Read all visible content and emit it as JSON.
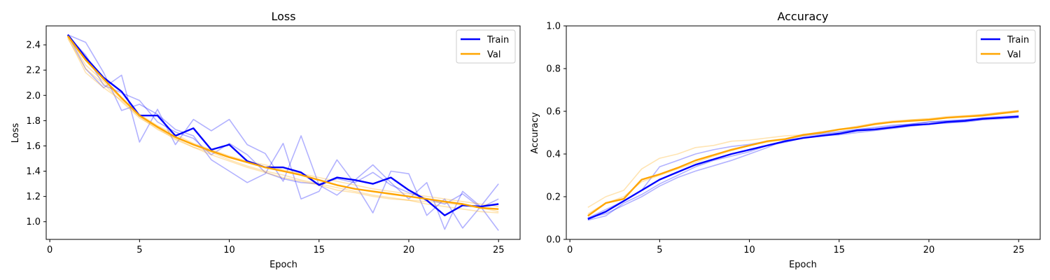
{
  "chart_data": [
    {
      "type": "line",
      "title": "Loss",
      "xlabel": "Epoch",
      "ylabel": "Loss",
      "xlim": [
        -0.2,
        26.2
      ],
      "ylim": [
        0.86,
        2.55
      ],
      "xticks": [
        0,
        5,
        10,
        15,
        20,
        25
      ],
      "xtick_labels": [
        "0",
        "5",
        "10",
        "15",
        "20",
        "25"
      ],
      "yticks": [
        1.0,
        1.2,
        1.4,
        1.6,
        1.8,
        2.0,
        2.2,
        2.4
      ],
      "ytick_labels": [
        "1.0",
        "1.2",
        "1.4",
        "1.6",
        "1.8",
        "2.0",
        "2.2",
        "2.4"
      ],
      "grid": false,
      "legend_position": "top-right",
      "x": [
        1,
        2,
        3,
        4,
        5,
        6,
        7,
        8,
        9,
        10,
        11,
        12,
        13,
        14,
        15,
        16,
        17,
        18,
        19,
        20,
        21,
        22,
        23,
        24,
        25
      ],
      "series": [
        {
          "name": "Train",
          "color": "#0000ff",
          "opacity": 1.0,
          "width": 2.4,
          "values": [
            2.48,
            2.3,
            2.14,
            2.03,
            1.84,
            1.84,
            1.68,
            1.74,
            1.57,
            1.61,
            1.48,
            1.43,
            1.43,
            1.39,
            1.29,
            1.35,
            1.33,
            1.3,
            1.35,
            1.25,
            1.17,
            1.05,
            1.13,
            1.12,
            1.14
          ]
        },
        {
          "name": "Val",
          "color": "#ffa500",
          "opacity": 1.0,
          "width": 2.4,
          "values": [
            2.47,
            2.28,
            2.13,
            1.98,
            1.84,
            1.75,
            1.67,
            1.61,
            1.56,
            1.51,
            1.47,
            1.43,
            1.4,
            1.37,
            1.33,
            1.29,
            1.26,
            1.24,
            1.22,
            1.2,
            1.18,
            1.16,
            1.14,
            1.11,
            1.1
          ]
        }
      ],
      "background_series": [
        {
          "color": "#0000ff",
          "opacity": 0.3,
          "values": [
            2.48,
            2.21,
            2.06,
            2.16,
            1.63,
            1.89,
            1.61,
            1.81,
            1.72,
            1.81,
            1.61,
            1.54,
            1.32,
            1.68,
            1.29,
            1.21,
            1.33,
            1.45,
            1.31,
            1.18,
            1.31,
            0.94,
            1.24,
            1.12,
            1.3
          ]
        },
        {
          "color": "#0000ff",
          "opacity": 0.3,
          "values": [
            2.48,
            2.42,
            2.18,
            1.88,
            1.93,
            1.85,
            1.73,
            1.68,
            1.49,
            1.4,
            1.31,
            1.38,
            1.62,
            1.18,
            1.24,
            1.49,
            1.3,
            1.07,
            1.4,
            1.38,
            1.05,
            1.18,
            0.95,
            1.12,
            0.93
          ]
        },
        {
          "color": "#0000ff",
          "opacity": 0.3,
          "values": [
            2.47,
            2.32,
            2.08,
            2.02,
            1.96,
            1.79,
            1.71,
            1.66,
            1.53,
            1.62,
            1.53,
            1.39,
            1.34,
            1.31,
            1.3,
            1.34,
            1.31,
            1.39,
            1.29,
            1.23,
            1.18,
            1.14,
            1.22,
            1.11,
            1.18
          ]
        },
        {
          "color": "#ffa500",
          "opacity": 0.3,
          "values": [
            2.46,
            2.18,
            2.06,
            1.96,
            1.83,
            1.73,
            1.66,
            1.59,
            1.55,
            1.49,
            1.44,
            1.4,
            1.37,
            1.33,
            1.3,
            1.27,
            1.24,
            1.21,
            1.19,
            1.17,
            1.16,
            1.15,
            1.13,
            1.11,
            1.08
          ]
        },
        {
          "color": "#ffa500",
          "opacity": 0.3,
          "values": [
            2.47,
            2.24,
            2.11,
            1.97,
            1.85,
            1.76,
            1.69,
            1.62,
            1.57,
            1.52,
            1.48,
            1.45,
            1.41,
            1.38,
            1.35,
            1.32,
            1.29,
            1.26,
            1.24,
            1.22,
            1.2,
            1.18,
            1.16,
            1.14,
            1.12
          ]
        },
        {
          "color": "#ffa500",
          "opacity": 0.3,
          "values": [
            2.45,
            2.21,
            2.09,
            1.95,
            1.82,
            1.74,
            1.65,
            1.59,
            1.53,
            1.48,
            1.43,
            1.39,
            1.35,
            1.32,
            1.29,
            1.25,
            1.23,
            1.2,
            1.18,
            1.17,
            1.14,
            1.12,
            1.1,
            1.08,
            1.07
          ]
        }
      ]
    },
    {
      "type": "line",
      "title": "Accuracy",
      "xlabel": "Epoch",
      "ylabel": "Accuracy",
      "xlim": [
        -0.2,
        26.2
      ],
      "ylim": [
        0.0,
        1.0
      ],
      "xticks": [
        0,
        5,
        10,
        15,
        20,
        25
      ],
      "xtick_labels": [
        "0",
        "5",
        "10",
        "15",
        "20",
        "25"
      ],
      "yticks": [
        0.0,
        0.2,
        0.4,
        0.6,
        0.8,
        1.0
      ],
      "ytick_labels": [
        "0.0",
        "0.2",
        "0.4",
        "0.6",
        "0.8",
        "1.0"
      ],
      "grid": false,
      "legend_position": "top-right",
      "x": [
        1,
        2,
        3,
        4,
        5,
        6,
        7,
        8,
        9,
        10,
        11,
        12,
        13,
        14,
        15,
        16,
        17,
        18,
        19,
        20,
        21,
        22,
        23,
        24,
        25
      ],
      "series": [
        {
          "name": "Train",
          "color": "#0000ff",
          "opacity": 1.0,
          "width": 2.4,
          "values": [
            0.095,
            0.13,
            0.18,
            0.23,
            0.28,
            0.315,
            0.35,
            0.375,
            0.4,
            0.42,
            0.44,
            0.46,
            0.475,
            0.485,
            0.495,
            0.51,
            0.515,
            0.525,
            0.535,
            0.54,
            0.55,
            0.555,
            0.565,
            0.57,
            0.575
          ]
        },
        {
          "name": "Val",
          "color": "#ffa500",
          "opacity": 1.0,
          "width": 2.4,
          "values": [
            0.11,
            0.17,
            0.19,
            0.28,
            0.305,
            0.335,
            0.37,
            0.395,
            0.42,
            0.44,
            0.46,
            0.47,
            0.49,
            0.5,
            0.515,
            0.525,
            0.54,
            0.55,
            0.555,
            0.56,
            0.57,
            0.575,
            0.58,
            0.59,
            0.6
          ]
        }
      ],
      "background_series": [
        {
          "color": "#0000ff",
          "opacity": 0.3,
          "values": [
            0.09,
            0.11,
            0.17,
            0.21,
            0.26,
            0.3,
            0.34,
            0.37,
            0.39,
            0.41,
            0.44,
            0.455,
            0.475,
            0.485,
            0.49,
            0.5,
            0.51,
            0.52,
            0.53,
            0.54,
            0.545,
            0.55,
            0.56,
            0.565,
            0.57
          ]
        },
        {
          "color": "#0000ff",
          "opacity": 0.3,
          "values": [
            0.1,
            0.14,
            0.18,
            0.23,
            0.34,
            0.37,
            0.4,
            0.42,
            0.435,
            0.445,
            0.46,
            0.47,
            0.485,
            0.495,
            0.505,
            0.515,
            0.525,
            0.535,
            0.54,
            0.55,
            0.555,
            0.56,
            0.57,
            0.575,
            0.58
          ]
        },
        {
          "color": "#0000ff",
          "opacity": 0.3,
          "values": [
            0.1,
            0.12,
            0.16,
            0.2,
            0.25,
            0.29,
            0.32,
            0.345,
            0.37,
            0.4,
            0.43,
            0.465,
            0.475,
            0.49,
            0.5,
            0.515,
            0.52,
            0.53,
            0.54,
            0.55,
            0.555,
            0.56,
            0.565,
            0.57,
            0.575
          ]
        },
        {
          "color": "#ffa500",
          "opacity": 0.3,
          "values": [
            0.15,
            0.2,
            0.23,
            0.33,
            0.38,
            0.4,
            0.43,
            0.44,
            0.46,
            0.465,
            0.475,
            0.485,
            0.49,
            0.505,
            0.515,
            0.53,
            0.545,
            0.555,
            0.56,
            0.565,
            0.575,
            0.58,
            0.585,
            0.595,
            0.6
          ]
        },
        {
          "color": "#ffa500",
          "opacity": 0.3,
          "values": [
            0.12,
            0.17,
            0.2,
            0.27,
            0.3,
            0.33,
            0.36,
            0.39,
            0.415,
            0.44,
            0.455,
            0.47,
            0.485,
            0.5,
            0.515,
            0.525,
            0.54,
            0.55,
            0.56,
            0.565,
            0.57,
            0.575,
            0.585,
            0.595,
            0.605
          ]
        }
      ]
    }
  ]
}
